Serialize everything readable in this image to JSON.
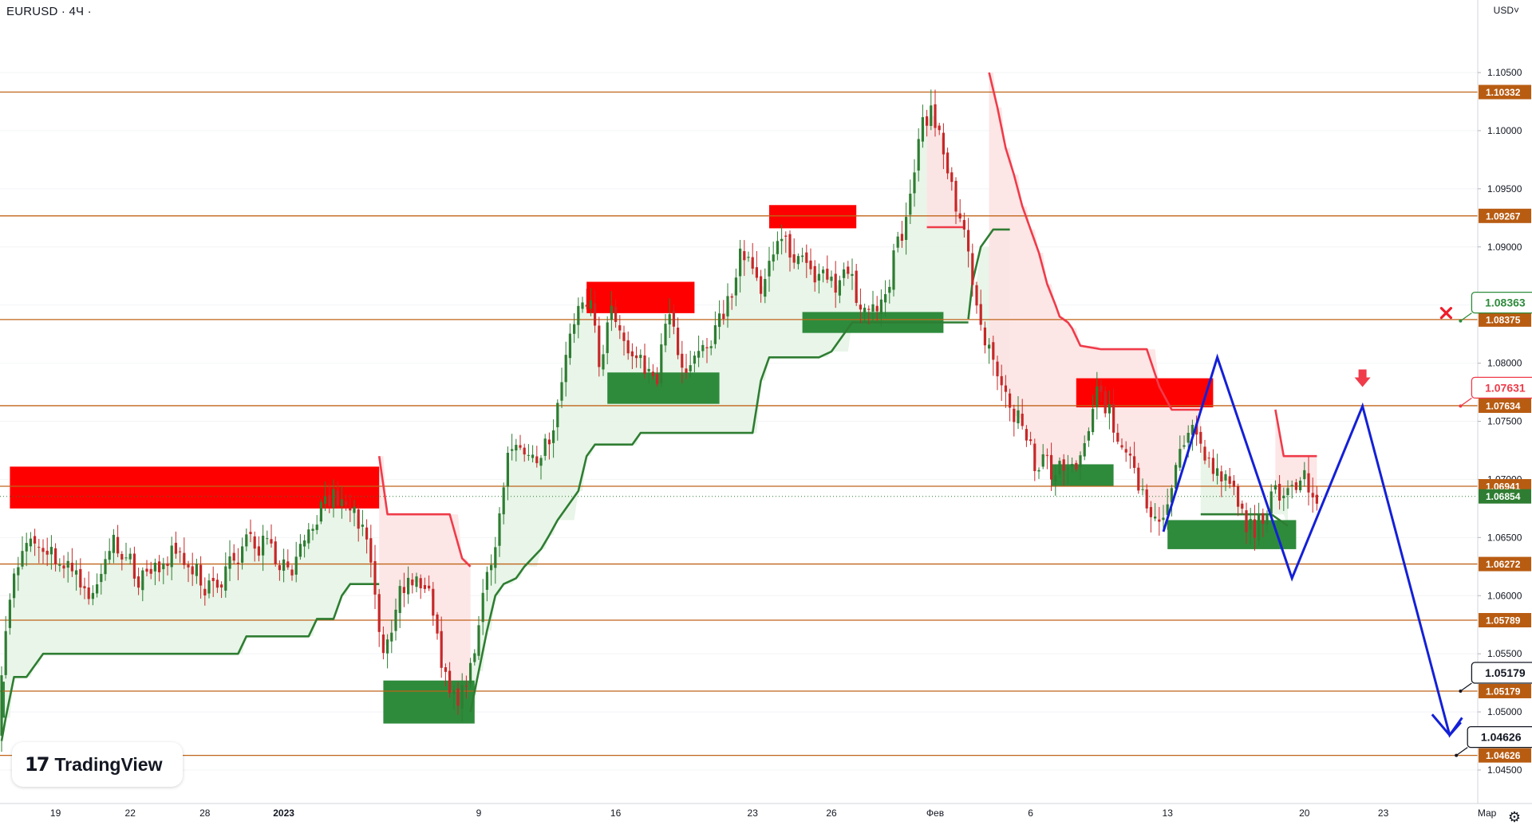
{
  "header": {
    "symbol": "EURUSD · 4Ч ·",
    "currency": "USD˅"
  },
  "brand": {
    "mark": "17",
    "name": "TradingView"
  },
  "settings_icon": "gear-icon",
  "colors": {
    "level_line": "#c0641a",
    "level_tag_bg": "#b85c12",
    "supply_zone": "#ff0000",
    "demand_zone": "#2e8b3c",
    "up_candle": "#2e7d32",
    "down_candle": "#c62828",
    "trail_up": "#2e7d32",
    "trail_down": "#ef3b4a",
    "fill_up": "#e6f4e6",
    "fill_down": "#fde3e3",
    "projection": "#1420d6",
    "current_tag": "#2e7d32"
  },
  "chart_data": {
    "type": "candlestick",
    "symbol": "EURUSD",
    "timeframe": "4Ч",
    "ylim": [
      1.0425,
      1.1085
    ],
    "y_ticks": [
      "1.10500",
      "1.10000",
      "1.09500",
      "1.09000",
      "1.08500",
      "1.08000",
      "1.07500",
      "1.07000",
      "1.06500",
      "1.06000",
      "1.05500",
      "1.05000",
      "1.04500"
    ],
    "x_ticks": [
      {
        "label": "19",
        "bar": 13
      },
      {
        "label": "22",
        "bar": 31
      },
      {
        "label": "28",
        "bar": 49
      },
      {
        "label": "2023",
        "bar": 68,
        "bold": true
      },
      {
        "label": "9",
        "bar": 115
      },
      {
        "label": "16",
        "bar": 148
      },
      {
        "label": "23",
        "bar": 181
      },
      {
        "label": "26",
        "bar": 200
      },
      {
        "label": "Фев",
        "bar": 225
      },
      {
        "label": "6",
        "bar": 248
      },
      {
        "label": "13",
        "bar": 281
      },
      {
        "label": "20",
        "bar": 314
      },
      {
        "label": "23",
        "bar": 333
      },
      {
        "label": "Мар",
        "bar": 358
      }
    ],
    "levels": [
      {
        "label": "1.10332",
        "value": 1.10332
      },
      {
        "label": "1.09267",
        "value": 1.09267
      },
      {
        "label": "1.08375",
        "value": 1.08375
      },
      {
        "label": "1.07634",
        "value": 1.07634
      },
      {
        "label": "1.06941",
        "value": 1.06941
      },
      {
        "label": "1.06272",
        "value": 1.06272
      },
      {
        "label": "1.05789",
        "value": 1.05789
      },
      {
        "label": "1.05179",
        "value": 1.05179
      },
      {
        "label": "1.04626",
        "value": 1.04626
      }
    ],
    "current_price": {
      "label": "1.06854",
      "value": 1.06854
    },
    "callouts": [
      {
        "label": "1.08363",
        "value": 1.08363,
        "bar": 352,
        "style": "green",
        "marker": "x"
      },
      {
        "label": "1.07631",
        "value": 1.07631,
        "bar": 352,
        "style": "red"
      },
      {
        "label": "1.05179",
        "value": 1.05179,
        "bar": 352,
        "style": "black"
      },
      {
        "label": "1.04626",
        "value": 1.04626,
        "bar": 351,
        "style": "black"
      }
    ],
    "supply_zones": [
      {
        "bar_start": 2,
        "bar_end": 91,
        "top": 1.0711,
        "bottom": 1.0675
      },
      {
        "bar_start": 141,
        "bar_end": 167,
        "top": 1.087,
        "bottom": 1.0843
      },
      {
        "bar_start": 185,
        "bar_end": 206,
        "top": 1.0936,
        "bottom": 1.0916
      },
      {
        "bar_start": 259,
        "bar_end": 292,
        "top": 1.0787,
        "bottom": 1.0762
      }
    ],
    "demand_zones": [
      {
        "bar_start": 0,
        "bar_end": 0.6,
        "top": 1.0526,
        "bottom": 1.0495
      },
      {
        "bar_start": 92,
        "bar_end": 114,
        "top": 1.0527,
        "bottom": 1.049
      },
      {
        "bar_start": 146,
        "bar_end": 173,
        "top": 1.0792,
        "bottom": 1.0765
      },
      {
        "bar_start": 193,
        "bar_end": 227,
        "top": 1.0844,
        "bottom": 1.0826
      },
      {
        "bar_start": 253,
        "bar_end": 268,
        "top": 1.0713,
        "bottom": 1.0694
      },
      {
        "bar_start": 281,
        "bar_end": 312,
        "top": 1.0665,
        "bottom": 1.064
      }
    ],
    "trail_stop": [
      {
        "trend": "up",
        "points": [
          [
            0,
            1.0475
          ],
          [
            1,
            1.0495
          ],
          [
            3,
            1.053
          ],
          [
            6,
            1.053
          ],
          [
            8,
            1.054
          ],
          [
            10,
            1.055
          ],
          [
            19,
            1.055
          ],
          [
            57,
            1.055
          ],
          [
            59,
            1.0565
          ],
          [
            62,
            1.0565
          ],
          [
            74,
            1.0565
          ],
          [
            76,
            1.058
          ],
          [
            80,
            1.058
          ],
          [
            81,
            1.059
          ],
          [
            82,
            1.06
          ],
          [
            84,
            1.061
          ],
          [
            91,
            1.061
          ]
        ]
      },
      {
        "trend": "down",
        "points": [
          [
            91,
            1.072
          ],
          [
            93,
            1.067
          ],
          [
            108,
            1.067
          ],
          [
            111,
            1.0632
          ],
          [
            113,
            1.0625
          ]
        ]
      },
      {
        "trend": "up",
        "points": [
          [
            113,
            1.05
          ],
          [
            115,
            1.0535
          ],
          [
            117,
            1.057
          ],
          [
            119,
            1.06
          ],
          [
            121,
            1.061
          ],
          [
            124,
            1.0615
          ],
          [
            126,
            1.0625
          ],
          [
            130,
            1.064
          ],
          [
            132,
            1.0652
          ],
          [
            134,
            1.0665
          ],
          [
            139,
            1.069
          ],
          [
            141,
            1.072
          ],
          [
            143,
            1.073
          ],
          [
            152,
            1.073
          ],
          [
            154,
            1.074
          ],
          [
            181,
            1.074
          ],
          [
            183,
            1.0785
          ],
          [
            185,
            1.0805
          ],
          [
            197,
            1.0805
          ],
          [
            200,
            1.081
          ],
          [
            205,
            1.0835
          ],
          [
            233,
            1.0835
          ]
        ]
      },
      {
        "trend": "down",
        "points": [
          [
            223,
            1.0917
          ],
          [
            232,
            1.0917
          ]
        ]
      },
      {
        "trend": "up",
        "points": [
          [
            233,
            1.0838
          ],
          [
            234,
            1.087
          ],
          [
            236,
            1.09
          ],
          [
            239,
            1.0915
          ],
          [
            243,
            1.0915
          ]
        ]
      },
      {
        "trend": "down",
        "points": [
          [
            238,
            1.105
          ],
          [
            240,
            1.102
          ],
          [
            242,
            1.0985
          ],
          [
            244,
            1.0962
          ],
          [
            246,
            1.0935
          ],
          [
            248,
            1.0915
          ],
          [
            250,
            1.0895
          ],
          [
            252,
            1.0868
          ],
          [
            254,
            1.085
          ],
          [
            255,
            1.084
          ],
          [
            257,
            1.0835
          ],
          [
            258,
            1.083
          ],
          [
            260,
            1.0815
          ],
          [
            265,
            1.0812
          ],
          [
            276,
            1.0812
          ],
          [
            279,
            1.078
          ],
          [
            282,
            1.076
          ],
          [
            289,
            1.076
          ]
        ]
      },
      {
        "trend": "up",
        "points": [
          [
            289,
            1.067
          ],
          [
            306,
            1.067
          ],
          [
            310,
            1.066
          ]
        ]
      },
      {
        "trend": "down",
        "points": [
          [
            307,
            1.076
          ],
          [
            308,
            1.074
          ],
          [
            309,
            1.072
          ],
          [
            311,
            1.072
          ],
          [
            317,
            1.072
          ]
        ]
      }
    ],
    "projection_path": [
      [
        280,
        1.0655
      ],
      [
        293,
        1.0805
      ],
      [
        311,
        1.0615
      ],
      [
        328,
        1.0763
      ],
      [
        349,
        1.048
      ],
      [
        352,
        1.0495
      ]
    ],
    "sell_arrow": {
      "bar": 328,
      "value": 1.0785
    }
  }
}
